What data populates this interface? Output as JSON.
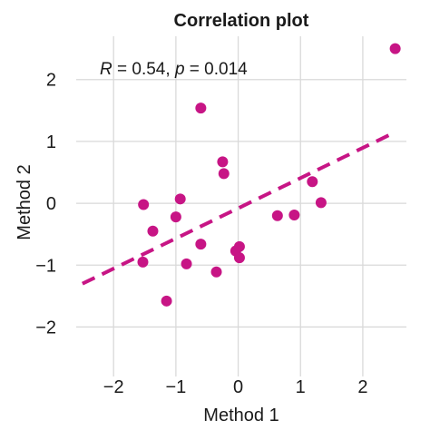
{
  "chart_data": {
    "type": "scatter",
    "title": "Correlation plot",
    "xlabel": "Method 1",
    "ylabel": "Method 2",
    "xlim": [
      -2.6,
      2.7
    ],
    "ylim": [
      -2.8,
      2.7
    ],
    "xticks": [
      -2,
      -1,
      0,
      1,
      2
    ],
    "yticks": [
      -2,
      -1,
      0,
      1,
      2
    ],
    "xtick_labels": [
      "−2",
      "−1",
      "0",
      "1",
      "2"
    ],
    "ytick_labels": [
      "−2",
      "−1",
      "0",
      "1",
      "2"
    ],
    "grid": true,
    "annotation": {
      "r_symbol": "R",
      "r_text": " = 0.54, ",
      "p_symbol": "p",
      "p_text": " = 0.014",
      "position": "top-left"
    },
    "point_color": "#c71585",
    "series": [
      {
        "points": [
          {
            "x": 2.52,
            "y": 2.5
          },
          {
            "x": -0.6,
            "y": 1.54
          },
          {
            "x": -0.25,
            "y": 0.67
          },
          {
            "x": -0.23,
            "y": 0.48
          },
          {
            "x": -0.93,
            "y": 0.07
          },
          {
            "x": -1.52,
            "y": -0.02
          },
          {
            "x": -1.0,
            "y": -0.22
          },
          {
            "x": -1.37,
            "y": -0.45
          },
          {
            "x": -0.6,
            "y": -0.66
          },
          {
            "x": -1.53,
            "y": -0.95
          },
          {
            "x": -0.83,
            "y": -0.98
          },
          {
            "x": -0.35,
            "y": -1.11
          },
          {
            "x": -0.04,
            "y": -0.77
          },
          {
            "x": 0.02,
            "y": -0.7
          },
          {
            "x": 0.02,
            "y": -0.88
          },
          {
            "x": -1.15,
            "y": -1.58
          },
          {
            "x": 0.63,
            "y": -0.2
          },
          {
            "x": 0.9,
            "y": -0.19
          },
          {
            "x": 1.19,
            "y": 0.35
          },
          {
            "x": 1.33,
            "y": 0.01
          }
        ]
      }
    ],
    "regression": {
      "x0": -2.5,
      "y0": -1.3,
      "x1": 2.5,
      "y1": 1.14,
      "style": "dashed"
    }
  }
}
